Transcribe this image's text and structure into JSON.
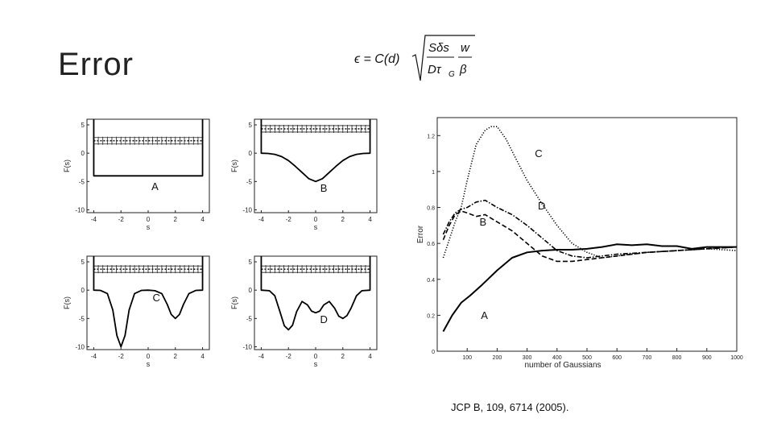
{
  "slide": {
    "title": "Error",
    "citation": "JCP B, 109, 6714 (2005).",
    "formula": {
      "lhs": "ϵ = C(d)",
      "num": "Sδs",
      "den": "Dτ",
      "den_sub": "G",
      "w": "w",
      "beta": "β"
    }
  },
  "chart_data": [
    {
      "type": "line",
      "id": "A",
      "label": "A",
      "xlabel": "s",
      "ylabel": "F(s)",
      "xlim": [
        -4.5,
        4.5
      ],
      "ylim": [
        -10.5,
        6
      ],
      "xticks": [
        -4,
        -2,
        0,
        2,
        4
      ],
      "yticks": [
        5,
        0,
        -5,
        -10
      ],
      "x": [
        -4,
        -4,
        4,
        4
      ],
      "y": [
        6,
        -4,
        -4,
        6
      ],
      "band_y": 2.2
    },
    {
      "type": "line",
      "id": "B",
      "label": "B",
      "xlabel": "s",
      "ylabel": "F(s)",
      "xlim": [
        -4.5,
        4.5
      ],
      "ylim": [
        -10.5,
        6
      ],
      "xticks": [
        -4,
        -2,
        0,
        2,
        4
      ],
      "yticks": [
        5,
        0,
        -5,
        -10
      ],
      "x": [
        -4,
        -4,
        -3.5,
        -3,
        -2.5,
        -2,
        -1.5,
        -1,
        -0.5,
        0,
        0.5,
        1,
        1.5,
        2,
        2.5,
        3,
        3.5,
        4,
        4
      ],
      "y": [
        6,
        0,
        -0.05,
        -0.2,
        -0.6,
        -1.3,
        -2.3,
        -3.4,
        -4.5,
        -5,
        -4.5,
        -3.4,
        -2.3,
        -1.3,
        -0.6,
        -0.2,
        -0.05,
        0,
        6
      ],
      "band_y": 4.3
    },
    {
      "type": "line",
      "id": "C",
      "label": "C",
      "xlabel": "s",
      "ylabel": "F(s)",
      "xlim": [
        -4.5,
        4.5
      ],
      "ylim": [
        -10.5,
        6
      ],
      "xticks": [
        -4,
        -2,
        0,
        2,
        4
      ],
      "yticks": [
        5,
        0,
        -5,
        -10
      ],
      "x": [
        -4,
        -4,
        -3.5,
        -3,
        -2.6,
        -2.3,
        -2,
        -1.7,
        -1.4,
        -1,
        -0.5,
        0,
        0.5,
        1,
        1.4,
        1.7,
        2,
        2.3,
        2.6,
        3,
        3.5,
        4,
        4
      ],
      "y": [
        6,
        0,
        -0.05,
        -0.6,
        -3.5,
        -8,
        -10,
        -8,
        -3.5,
        -0.6,
        -0.05,
        0,
        -0.1,
        -0.6,
        -2.5,
        -4.3,
        -5,
        -4.3,
        -2.5,
        -0.6,
        -0.05,
        0,
        6
      ],
      "band_y": 3.7
    },
    {
      "type": "line",
      "id": "D",
      "label": "D",
      "xlabel": "s",
      "ylabel": "F(s)",
      "xlim": [
        -4.5,
        4.5
      ],
      "ylim": [
        -10.5,
        6
      ],
      "xticks": [
        -4,
        -2,
        0,
        2,
        4
      ],
      "yticks": [
        5,
        0,
        -5,
        -10
      ],
      "x": [
        -4,
        -4,
        -3.4,
        -3,
        -2.6,
        -2.3,
        -2,
        -1.7,
        -1.4,
        -1,
        -0.6,
        -0.3,
        0,
        0.3,
        0.6,
        1,
        1.4,
        1.7,
        2,
        2.3,
        2.6,
        3,
        3.4,
        4,
        4
      ],
      "y": [
        6,
        0,
        -0.1,
        -1,
        -4,
        -6.3,
        -7,
        -6.2,
        -3.8,
        -2,
        -2.6,
        -3.7,
        -4,
        -3.7,
        -2.6,
        -2,
        -3.2,
        -4.6,
        -5,
        -4.5,
        -3.2,
        -1,
        -0.1,
        0,
        6
      ],
      "band_y": 3.7
    },
    {
      "type": "line",
      "id": "error",
      "xlabel": "number of Gaussians",
      "ylabel": "Error",
      "xlim": [
        0,
        1000
      ],
      "ylim": [
        0,
        1.3
      ],
      "xticks": [
        100,
        200,
        300,
        400,
        500,
        600,
        700,
        800,
        900,
        1000
      ],
      "ytick_labels": [
        "0",
        "0.2",
        "0.4",
        "0.6",
        "0.8",
        "1",
        "1.2"
      ],
      "yticks": [
        0,
        0.2,
        0.4,
        0.6,
        0.8,
        1,
        1.2
      ],
      "series": [
        {
          "name": "A",
          "style": "solid",
          "x": [
            20,
            50,
            80,
            110,
            150,
            200,
            250,
            300,
            350,
            400,
            450,
            500,
            550,
            600,
            650,
            700,
            750,
            800,
            850,
            900,
            950,
            1000
          ],
          "y": [
            0.11,
            0.2,
            0.27,
            0.31,
            0.37,
            0.45,
            0.52,
            0.55,
            0.56,
            0.565,
            0.565,
            0.57,
            0.58,
            0.595,
            0.59,
            0.595,
            0.585,
            0.585,
            0.57,
            0.58,
            0.58,
            0.58
          ]
        },
        {
          "name": "B",
          "style": "dashed",
          "x": [
            20,
            40,
            60,
            80,
            100,
            130,
            160,
            200,
            250,
            300,
            350,
            400,
            450,
            500,
            550,
            600,
            700,
            800,
            900,
            1000
          ],
          "y": [
            0.62,
            0.7,
            0.76,
            0.78,
            0.77,
            0.75,
            0.76,
            0.72,
            0.67,
            0.6,
            0.53,
            0.5,
            0.5,
            0.51,
            0.52,
            0.53,
            0.55,
            0.56,
            0.57,
            0.58
          ]
        },
        {
          "name": "C",
          "style": "dotted",
          "x": [
            20,
            40,
            60,
            80,
            100,
            130,
            160,
            180,
            200,
            230,
            260,
            300,
            350,
            400,
            450,
            500,
            550,
            600,
            700,
            800,
            900,
            1000
          ],
          "y": [
            0.52,
            0.62,
            0.72,
            0.8,
            0.95,
            1.15,
            1.23,
            1.25,
            1.25,
            1.18,
            1.08,
            0.95,
            0.82,
            0.7,
            0.6,
            0.55,
            0.52,
            0.53,
            0.55,
            0.56,
            0.57,
            0.56
          ]
        },
        {
          "name": "D",
          "style": "dashdot",
          "x": [
            20,
            40,
            60,
            80,
            100,
            130,
            160,
            200,
            250,
            300,
            350,
            400,
            450,
            500,
            550,
            600,
            700,
            800,
            900,
            1000
          ],
          "y": [
            0.65,
            0.72,
            0.77,
            0.79,
            0.8,
            0.83,
            0.84,
            0.8,
            0.76,
            0.7,
            0.63,
            0.56,
            0.53,
            0.52,
            0.53,
            0.54,
            0.55,
            0.56,
            0.57,
            0.58
          ]
        }
      ],
      "annotations": [
        {
          "text": "C",
          "x": 205,
          "y": 1.08
        },
        {
          "text": "D",
          "x": 215,
          "y": 0.79
        },
        {
          "text": "B",
          "x": 20,
          "y": 0.7
        },
        {
          "text": "A",
          "x": 25,
          "y": 0.18
        }
      ]
    }
  ]
}
